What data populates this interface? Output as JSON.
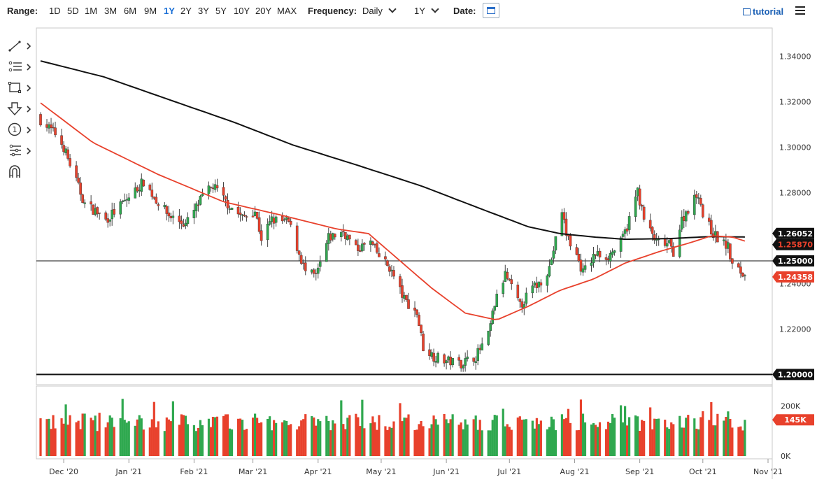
{
  "toolbar": {
    "range_label": "Range:",
    "ranges": [
      "1D",
      "5D",
      "1M",
      "3M",
      "6M",
      "9M",
      "1Y",
      "2Y",
      "3Y",
      "5Y",
      "10Y",
      "20Y",
      "MAX"
    ],
    "active_range": "1Y",
    "frequency_label": "Frequency:",
    "frequency_value": "Daily",
    "period_value": "1Y",
    "date_label": "Date:",
    "tutorial_label": "tutorial"
  },
  "drawing_tools": [
    "trend-line-icon",
    "fibonacci-icon",
    "rectangle-icon",
    "arrow-down-icon",
    "note-icon",
    "pattern-icon",
    "magnet-icon"
  ],
  "colors": {
    "up": "#2fa84f",
    "down": "#e8412c",
    "sma_fast": "#e8412c",
    "sma_slow": "#111111",
    "tag_black": "#111111",
    "tag_red": "#e8412c"
  },
  "chart_data": {
    "type": "candlestick",
    "instrument": "",
    "x_ticks": [
      "Dec '20",
      "Jan '21",
      "Feb '21",
      "Mar '21",
      "Apr '21",
      "May '21",
      "Jun '21",
      "Jul '21",
      "Aug '21",
      "Sep '21",
      "Oct '21",
      "Nov '21"
    ],
    "y_ticks": [
      "1.34000",
      "1.32000",
      "1.30000",
      "1.28000",
      "1.26000",
      "1.24000",
      "1.22000",
      "1.20000"
    ],
    "ylim": [
      1.1955,
      1.3525
    ],
    "price_anchors": [
      [
        "2020-11-20",
        1.312
      ],
      [
        "2020-11-27",
        1.306
      ],
      [
        "2020-12-01",
        1.3
      ],
      [
        "2020-12-07",
        1.285
      ],
      [
        "2020-12-11",
        1.275
      ],
      [
        "2020-12-16",
        1.272
      ],
      [
        "2020-12-21",
        1.268
      ],
      [
        "2020-12-31",
        1.277
      ],
      [
        "2021-01-08",
        1.285
      ],
      [
        "2021-01-13",
        1.278
      ],
      [
        "2021-01-20",
        1.27
      ],
      [
        "2021-01-28",
        1.266
      ],
      [
        "2021-02-05",
        1.278
      ],
      [
        "2021-02-10",
        1.283
      ],
      [
        "2021-02-16",
        1.276
      ],
      [
        "2021-02-24",
        1.269
      ],
      [
        "2021-03-02",
        1.272
      ],
      [
        "2021-03-05",
        1.26
      ],
      [
        "2021-03-10",
        1.268
      ],
      [
        "2021-03-18",
        1.267
      ],
      [
        "2021-03-26",
        1.245
      ],
      [
        "2021-03-31",
        1.243
      ],
      [
        "2021-04-06",
        1.26
      ],
      [
        "2021-04-13",
        1.263
      ],
      [
        "2021-04-19",
        1.255
      ],
      [
        "2021-04-26",
        1.258
      ],
      [
        "2021-04-30",
        1.252
      ],
      [
        "2021-05-05",
        1.247
      ],
      [
        "2021-05-12",
        1.233
      ],
      [
        "2021-05-18",
        1.227
      ],
      [
        "2021-05-21",
        1.212
      ],
      [
        "2021-05-26",
        1.208
      ],
      [
        "2021-06-01",
        1.206
      ],
      [
        "2021-06-08",
        1.205
      ],
      [
        "2021-06-15",
        1.208
      ],
      [
        "2021-06-21",
        1.217
      ],
      [
        "2021-06-24",
        1.231
      ],
      [
        "2021-06-29",
        1.244
      ],
      [
        "2021-07-06",
        1.23
      ],
      [
        "2021-07-12",
        1.238
      ],
      [
        "2021-07-15",
        1.24
      ],
      [
        "2021-07-20",
        1.247
      ],
      [
        "2021-07-23",
        1.259
      ],
      [
        "2021-07-26",
        1.272
      ],
      [
        "2021-07-28",
        1.262
      ],
      [
        "2021-08-02",
        1.252
      ],
      [
        "2021-08-05",
        1.245
      ],
      [
        "2021-08-11",
        1.253
      ],
      [
        "2021-08-17",
        1.252
      ],
      [
        "2021-08-23",
        1.258
      ],
      [
        "2021-08-26",
        1.265
      ],
      [
        "2021-08-31",
        1.281
      ],
      [
        "2021-09-03",
        1.268
      ],
      [
        "2021-09-09",
        1.258
      ],
      [
        "2021-09-15",
        1.257
      ],
      [
        "2021-09-17",
        1.254
      ],
      [
        "2021-09-21",
        1.268
      ],
      [
        "2021-09-24",
        1.273
      ],
      [
        "2021-09-29",
        1.28
      ],
      [
        "2021-10-01",
        1.27
      ],
      [
        "2021-10-06",
        1.262
      ],
      [
        "2021-10-08",
        1.26
      ],
      [
        "2021-10-13",
        1.256
      ],
      [
        "2021-10-15",
        1.248
      ],
      [
        "2021-10-19",
        1.245
      ],
      [
        "2021-10-21",
        1.2436
      ]
    ],
    "sma_fast_anchors": [
      [
        "2020-11-20",
        1.3195
      ],
      [
        "2020-12-15",
        1.302
      ],
      [
        "2021-01-15",
        1.288
      ],
      [
        "2021-02-15",
        1.276
      ],
      [
        "2021-03-15",
        1.27
      ],
      [
        "2021-04-10",
        1.264
      ],
      [
        "2021-04-25",
        1.262
      ],
      [
        "2021-05-10",
        1.25
      ],
      [
        "2021-05-25",
        1.238
      ],
      [
        "2021-06-10",
        1.227
      ],
      [
        "2021-06-25",
        1.224
      ],
      [
        "2021-07-10",
        1.23
      ],
      [
        "2021-07-25",
        1.237
      ],
      [
        "2021-08-10",
        1.242
      ],
      [
        "2021-08-25",
        1.249
      ],
      [
        "2021-09-10",
        1.254
      ],
      [
        "2021-09-25",
        1.258
      ],
      [
        "2021-10-05",
        1.261
      ],
      [
        "2021-10-15",
        1.2605
      ],
      [
        "2021-10-21",
        1.2587
      ]
    ],
    "sma_slow_anchors": [
      [
        "2020-11-20",
        1.338
      ],
      [
        "2020-12-20",
        1.331
      ],
      [
        "2021-01-20",
        1.321
      ],
      [
        "2021-02-20",
        1.311
      ],
      [
        "2021-03-20",
        1.301
      ],
      [
        "2021-04-20",
        1.292
      ],
      [
        "2021-05-20",
        1.283
      ],
      [
        "2021-06-20",
        1.272
      ],
      [
        "2021-07-10",
        1.265
      ],
      [
        "2021-07-25",
        1.262
      ],
      [
        "2021-08-10",
        1.2605
      ],
      [
        "2021-08-25",
        1.2595
      ],
      [
        "2021-09-15",
        1.2598
      ],
      [
        "2021-10-05",
        1.2607
      ],
      [
        "2021-10-21",
        1.2605
      ]
    ],
    "horizontal_levels": [
      {
        "value": 1.25,
        "label": "1.25000"
      },
      {
        "value": 1.2,
        "label": "1.20000"
      }
    ],
    "last_values": {
      "sma_slow": "1.26052",
      "sma_fast": "1.25870",
      "price": "1.24358"
    },
    "volume": {
      "y_ticks": [
        "200K",
        "0K"
      ],
      "ylim": [
        0,
        280000
      ],
      "last_label": "145K",
      "last_value": 145000
    }
  }
}
